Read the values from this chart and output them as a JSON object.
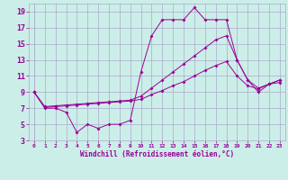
{
  "xlabel": "Windchill (Refroidissement éolien,°C)",
  "background_color": "#cceee8",
  "grid_color": "#aaaacc",
  "line_color": "#990099",
  "xlim": [
    -0.5,
    23.5
  ],
  "ylim": [
    3,
    20
  ],
  "yticks": [
    3,
    5,
    7,
    9,
    11,
    13,
    15,
    17,
    19
  ],
  "xticks": [
    0,
    1,
    2,
    3,
    4,
    5,
    6,
    7,
    8,
    9,
    10,
    11,
    12,
    13,
    14,
    15,
    16,
    17,
    18,
    19,
    20,
    21,
    22,
    23
  ],
  "line1_x": [
    0,
    1,
    2,
    3,
    4,
    5,
    6,
    7,
    8,
    9,
    10,
    11,
    12,
    13,
    14,
    15,
    16,
    17,
    18,
    19,
    20,
    21,
    22,
    23
  ],
  "line1_y": [
    9,
    7,
    7,
    6.5,
    4,
    5,
    4.5,
    5,
    5,
    5.5,
    11.5,
    16,
    18,
    18,
    18,
    19.5,
    18,
    18,
    18,
    13,
    10.5,
    9,
    10,
    10.5
  ],
  "line2_x": [
    0,
    1,
    2,
    3,
    4,
    5,
    6,
    7,
    8,
    9,
    10,
    11,
    12,
    13,
    14,
    15,
    16,
    17,
    18,
    19,
    20,
    21,
    22,
    23
  ],
  "line2_y": [
    9,
    7.2,
    7.3,
    7.4,
    7.5,
    7.6,
    7.7,
    7.8,
    7.9,
    8.0,
    8.5,
    9.5,
    10.5,
    11.5,
    12.5,
    13.5,
    14.5,
    15.5,
    16.0,
    13.0,
    10.5,
    9.5,
    10.0,
    10.5
  ],
  "line3_x": [
    0,
    1,
    2,
    3,
    4,
    5,
    6,
    7,
    8,
    9,
    10,
    11,
    12,
    13,
    14,
    15,
    16,
    17,
    18,
    19,
    20,
    21,
    22,
    23
  ],
  "line3_y": [
    9,
    7.1,
    7.2,
    7.3,
    7.4,
    7.5,
    7.6,
    7.7,
    7.8,
    7.9,
    8.1,
    8.7,
    9.2,
    9.8,
    10.3,
    11.0,
    11.7,
    12.3,
    12.8,
    11.0,
    9.8,
    9.4,
    10.0,
    10.2
  ]
}
